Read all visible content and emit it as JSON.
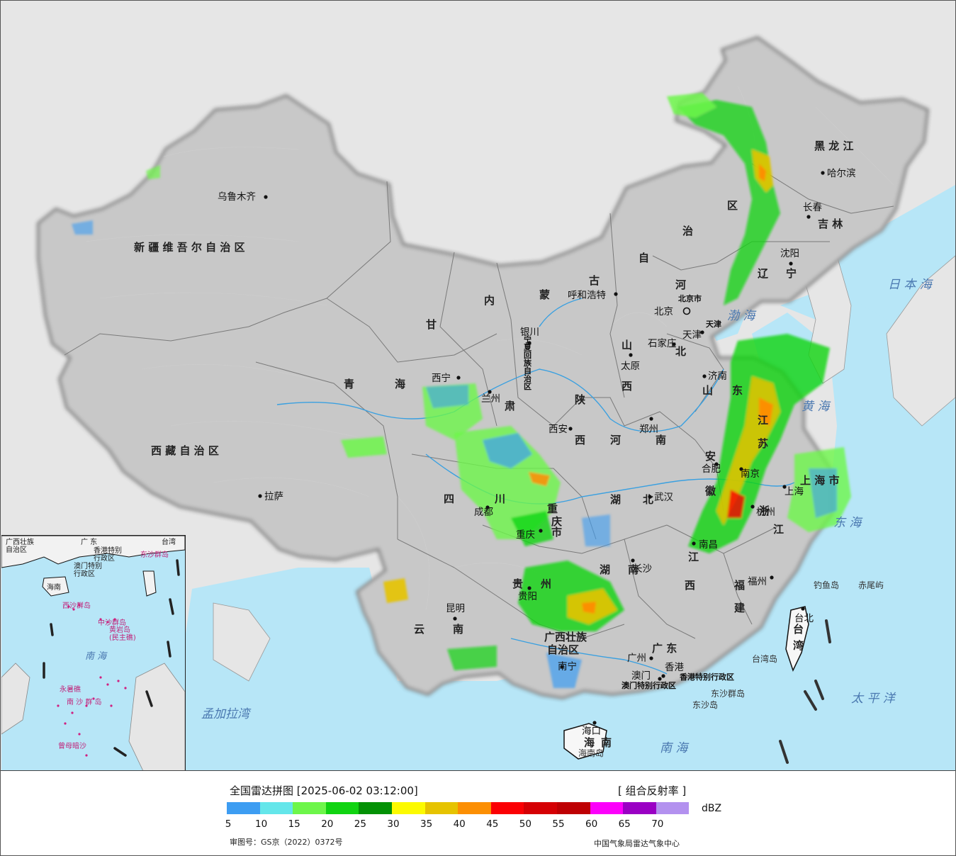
{
  "provinces": [
    {
      "id": "xinjiang",
      "text": "新 疆 维 吾 尔 自 治 区"
    },
    {
      "id": "xizang",
      "text": "西 藏 自 治 区"
    },
    {
      "id": "qinghai-1",
      "text": "青"
    },
    {
      "id": "qinghai-2",
      "text": "海"
    },
    {
      "id": "gansu-1",
      "text": "甘"
    },
    {
      "id": "gansu-2",
      "text": "肃"
    },
    {
      "id": "nmg-1",
      "text": "内"
    },
    {
      "id": "nmg-2",
      "text": "蒙"
    },
    {
      "id": "nmg-3",
      "text": "古"
    },
    {
      "id": "nmg-4",
      "text": "自"
    },
    {
      "id": "nmg-5",
      "text": "治"
    },
    {
      "id": "nmg-6",
      "text": "区"
    },
    {
      "id": "heilongjiang",
      "text": "黑 龙 江"
    },
    {
      "id": "jilin",
      "text": "吉 林"
    },
    {
      "id": "liaoning-1",
      "text": "辽"
    },
    {
      "id": "liaoning-2",
      "text": "宁"
    },
    {
      "id": "hebei-1",
      "text": "河"
    },
    {
      "id": "hebei-2",
      "text": "北"
    },
    {
      "id": "shanxi-1",
      "text": "山"
    },
    {
      "id": "shanxi-2",
      "text": "西"
    },
    {
      "id": "shaanxi-1",
      "text": "陕"
    },
    {
      "id": "shaanxi-2",
      "text": "西"
    },
    {
      "id": "henan-1",
      "text": "河"
    },
    {
      "id": "henan-2",
      "text": "南"
    },
    {
      "id": "shandong-1",
      "text": "山"
    },
    {
      "id": "shandong-2",
      "text": "东"
    },
    {
      "id": "jiangsu-1",
      "text": "江"
    },
    {
      "id": "jiangsu-2",
      "text": "苏"
    },
    {
      "id": "anhui-1",
      "text": "安"
    },
    {
      "id": "anhui-2",
      "text": "徽"
    },
    {
      "id": "shanghai",
      "text": "上 海 市"
    },
    {
      "id": "zhejiang-1",
      "text": "浙"
    },
    {
      "id": "zhejiang-2",
      "text": "江"
    },
    {
      "id": "hubei-1",
      "text": "湖"
    },
    {
      "id": "hubei-2",
      "text": "北"
    },
    {
      "id": "hunan-1",
      "text": "湖"
    },
    {
      "id": "hunan-2",
      "text": "南"
    },
    {
      "id": "jiangxi-1",
      "text": "江"
    },
    {
      "id": "jiangxi-2",
      "text": "西"
    },
    {
      "id": "fujian-1",
      "text": "福"
    },
    {
      "id": "fujian-2",
      "text": "建"
    },
    {
      "id": "sichuan-1",
      "text": "四"
    },
    {
      "id": "sichuan-2",
      "text": "川"
    },
    {
      "id": "chongqing-1",
      "text": "重"
    },
    {
      "id": "chongqing-2",
      "text": "庆"
    },
    {
      "id": "chongqing-3",
      "text": "市"
    },
    {
      "id": "guizhou-1",
      "text": "贵"
    },
    {
      "id": "guizhou-2",
      "text": "州"
    },
    {
      "id": "yunnan-1",
      "text": "云"
    },
    {
      "id": "yunnan-2",
      "text": "南"
    },
    {
      "id": "guangxi-1",
      "text": "广西壮族"
    },
    {
      "id": "guangxi-2",
      "text": "自治区"
    },
    {
      "id": "guangdong",
      "text": "广 东"
    },
    {
      "id": "hainan-1",
      "text": "海"
    },
    {
      "id": "hainan-2",
      "text": "南"
    },
    {
      "id": "taiwan-1",
      "text": "台"
    },
    {
      "id": "taiwan-2",
      "text": "湾"
    },
    {
      "id": "ningxia",
      "text": "宁夏回族自治区"
    },
    {
      "id": "hongkong",
      "text": "香港特别行政区"
    },
    {
      "id": "macau",
      "text": "澳门特别行政区"
    },
    {
      "id": "tianjin",
      "text": "天津"
    },
    {
      "id": "beijing-small",
      "text": "北京市"
    }
  ],
  "cities": [
    {
      "id": "urumqi",
      "text": "乌鲁木齐"
    },
    {
      "id": "lhasa",
      "text": "拉萨"
    },
    {
      "id": "xining",
      "text": "西宁"
    },
    {
      "id": "lanzhou",
      "text": "兰州"
    },
    {
      "id": "yinchuan",
      "text": "银川"
    },
    {
      "id": "hohhot",
      "text": "呼和浩特"
    },
    {
      "id": "harbin",
      "text": "哈尔滨"
    },
    {
      "id": "changchun",
      "text": "长春"
    },
    {
      "id": "shenyang",
      "text": "沈阳"
    },
    {
      "id": "beijing",
      "text": "北京"
    },
    {
      "id": "tianjin-city",
      "text": "天津"
    },
    {
      "id": "shijiazhuang",
      "text": "石家庄"
    },
    {
      "id": "taiyuan",
      "text": "太原"
    },
    {
      "id": "jinan",
      "text": "济南"
    },
    {
      "id": "zhengzhou",
      "text": "郑州"
    },
    {
      "id": "xian",
      "text": "西安"
    },
    {
      "id": "hefei",
      "text": "合肥"
    },
    {
      "id": "nanjing",
      "text": "南京"
    },
    {
      "id": "shanghai-city",
      "text": "上海"
    },
    {
      "id": "hangzhou",
      "text": "杭州"
    },
    {
      "id": "wuhan",
      "text": "武汉"
    },
    {
      "id": "chengdu",
      "text": "成都"
    },
    {
      "id": "chongqing-city",
      "text": "重庆"
    },
    {
      "id": "changsha",
      "text": "长沙"
    },
    {
      "id": "nanchang",
      "text": "南昌"
    },
    {
      "id": "fuzhou",
      "text": "福州"
    },
    {
      "id": "guiyang",
      "text": "贵阳"
    },
    {
      "id": "kunming",
      "text": "昆明"
    },
    {
      "id": "nanning",
      "text": "南宁"
    },
    {
      "id": "guangzhou",
      "text": "广州"
    },
    {
      "id": "hongkong-city",
      "text": "香港"
    },
    {
      "id": "macau-city",
      "text": "澳门"
    },
    {
      "id": "haikou",
      "text": "海口"
    },
    {
      "id": "taipei",
      "text": "台北"
    }
  ],
  "seas": [
    {
      "id": "sea-japan",
      "text": "日 本 海"
    },
    {
      "id": "bohai",
      "text": "渤 海"
    },
    {
      "id": "yellow-sea",
      "text": "黄 海"
    },
    {
      "id": "east-sea",
      "text": "东 海"
    },
    {
      "id": "pacific",
      "text": "太 平 洋"
    },
    {
      "id": "south-sea",
      "text": "南  海"
    },
    {
      "id": "bengal",
      "text": "孟加拉湾"
    }
  ],
  "islands": [
    {
      "id": "diaoyu",
      "text": "钓鱼岛"
    },
    {
      "id": "chiwei",
      "text": "赤尾屿"
    },
    {
      "id": "taiwan-island",
      "text": "台湾岛"
    },
    {
      "id": "dongsha",
      "text": "东沙群岛"
    },
    {
      "id": "dongsha-2",
      "text": "东沙岛"
    },
    {
      "id": "hainan-island",
      "text": "海南岛"
    }
  ],
  "inset": {
    "labels": [
      {
        "id": "inset-guangxi",
        "text": "广西壮族\n自治区"
      },
      {
        "id": "inset-guangdong",
        "text": "广 东"
      },
      {
        "id": "inset-hk",
        "text": "香港特别\n行政区"
      },
      {
        "id": "inset-macau",
        "text": "澳门特别\n行政区"
      },
      {
        "id": "inset-taiwan",
        "text": "台湾"
      },
      {
        "id": "inset-hainan",
        "text": "海南"
      },
      {
        "id": "inset-dongsha",
        "text": "东沙群岛"
      },
      {
        "id": "inset-xisha",
        "text": "西沙群岛"
      },
      {
        "id": "inset-zhongsha",
        "text": "中沙群岛"
      },
      {
        "id": "inset-huangyan",
        "text": "黄岩岛\n(民主礁)"
      },
      {
        "id": "inset-southsea",
        "text": "南  海"
      },
      {
        "id": "inset-nansha",
        "text": "南 沙 群 岛"
      },
      {
        "id": "inset-yongshu",
        "text": "永暑礁"
      },
      {
        "id": "inset-zengmu",
        "text": "曾母暗沙"
      }
    ]
  },
  "legend": {
    "title": "全国雷达拼图 [2025-06-02 03:12:00]",
    "product": "[ 组合反射率 ]",
    "unit": "dBZ",
    "colors": [
      "#3d9df2",
      "#64e6ea",
      "#6df64a",
      "#10d411",
      "#039105",
      "#fcfa00",
      "#e6c300",
      "#fc8f03",
      "#fb0004",
      "#d50004",
      "#be0003",
      "#fc00fb",
      "#9a00c4",
      "#b391ef"
    ],
    "ticks": [
      "5",
      "10",
      "15",
      "20",
      "25",
      "30",
      "35",
      "40",
      "45",
      "50",
      "55",
      "60",
      "65",
      "70"
    ],
    "approval": "审图号：GS京（2022）0372号",
    "agency": "中国气象局雷达气象中心"
  }
}
